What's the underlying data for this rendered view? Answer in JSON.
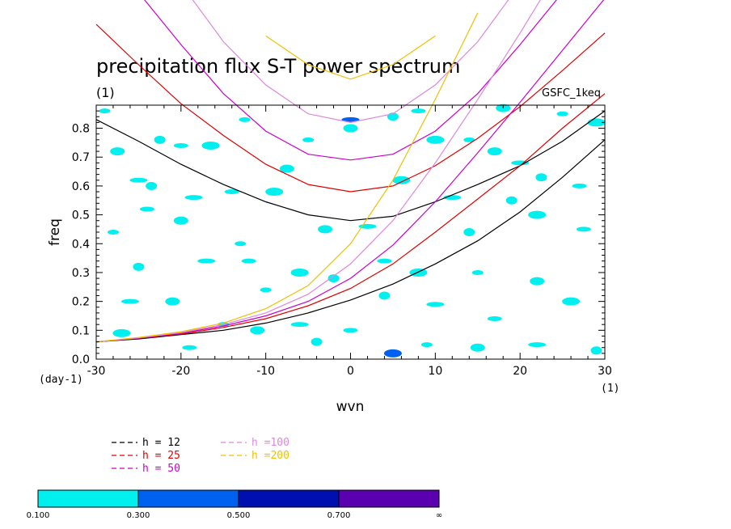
{
  "chart_data": {
    "type": "line",
    "title": "precipitation flux S-T power spectrum",
    "subtitle": "(1)",
    "model_label": "GSFC_1keq",
    "xlabel": "wvn",
    "ylabel": "freq",
    "x_unit_label": "(1)",
    "y_unit_label": "(day-1)",
    "xlim": [
      -30,
      30
    ],
    "ylim": [
      0,
      0.88
    ],
    "x_ticks": [
      -30,
      -20,
      -10,
      0,
      10,
      20,
      30
    ],
    "x_tick_labels": [
      "-30",
      "-20",
      "-10",
      "0",
      "10",
      "20",
      "30"
    ],
    "y_ticks": [
      0,
      0.1,
      0.2,
      0.3,
      0.4,
      0.5,
      0.6,
      0.7,
      0.8
    ],
    "y_tick_labels": [
      "0.0",
      "0.1",
      "0.2",
      "0.3",
      "0.4",
      "0.5",
      "0.6",
      "0.7",
      "0.8"
    ],
    "grid": false,
    "legend_position": "bottom-left",
    "series": [
      {
        "name": "h = 12",
        "legend_label": "h = 12",
        "color": "#000000",
        "rossby_wave": {
          "x": [
            -30,
            -25,
            -20,
            -15,
            -10,
            -5,
            0,
            5,
            10,
            15,
            20,
            25,
            30
          ],
          "y": [
            0.06,
            0.07,
            0.085,
            0.1,
            0.125,
            0.16,
            0.205,
            0.26,
            0.33,
            0.41,
            0.51,
            0.63,
            0.76
          ]
        },
        "gravity_wave": {
          "x": [
            -30,
            -25,
            -20,
            -15,
            -10,
            -5,
            0,
            5,
            10,
            15,
            20,
            25,
            30
          ],
          "y": [
            0.83,
            0.755,
            0.675,
            0.605,
            0.545,
            0.5,
            0.48,
            0.495,
            0.545,
            0.605,
            0.67,
            0.755,
            0.86
          ]
        }
      },
      {
        "name": "h = 25",
        "legend_label": "h = 25",
        "color": "#e00000",
        "rossby_wave": {
          "x": [
            -30,
            -25,
            -20,
            -15,
            -10,
            -5,
            0,
            5,
            10,
            15,
            20,
            25,
            30
          ],
          "y": [
            0.06,
            0.072,
            0.087,
            0.11,
            0.14,
            0.185,
            0.245,
            0.33,
            0.44,
            0.555,
            0.67,
            0.8,
            0.92
          ]
        },
        "gravity_wave": {
          "x": [
            -30,
            -25,
            -20,
            -15,
            -10,
            -5,
            0,
            5,
            10,
            15,
            20,
            25,
            30
          ],
          "y": [
            1.16,
            1.02,
            0.885,
            0.775,
            0.675,
            0.605,
            0.58,
            0.6,
            0.67,
            0.765,
            0.875,
            1.0,
            1.13
          ]
        }
      },
      {
        "name": "h = 50",
        "legend_label": "h = 50",
        "color": "#cc00cc",
        "rossby_wave": {
          "x": [
            -30,
            -25,
            -20,
            -15,
            -10,
            -5,
            0,
            5,
            10,
            15,
            20,
            25,
            30
          ],
          "y": [
            0.06,
            0.073,
            0.09,
            0.115,
            0.15,
            0.2,
            0.28,
            0.395,
            0.545,
            0.715,
            0.89,
            1.07,
            1.25
          ]
        },
        "gravity_wave": {
          "x": [
            -25,
            -20,
            -15,
            -10,
            -5,
            0,
            5,
            10,
            15,
            20,
            25
          ],
          "y": [
            1.27,
            1.09,
            0.92,
            0.79,
            0.71,
            0.69,
            0.71,
            0.79,
            0.92,
            1.09,
            1.27
          ]
        }
      },
      {
        "name": "h =100",
        "legend_label": "h =100",
        "color": "#dd88dd",
        "rossby_wave": {
          "x": [
            -30,
            -25,
            -20,
            -15,
            -10,
            -5,
            0,
            5,
            10,
            15,
            20,
            25
          ],
          "y": [
            0.06,
            0.074,
            0.092,
            0.12,
            0.16,
            0.225,
            0.33,
            0.48,
            0.68,
            0.9,
            1.13,
            1.37
          ]
        },
        "gravity_wave": {
          "x": [
            -20,
            -15,
            -10,
            -5,
            0,
            5,
            10,
            15,
            20
          ],
          "y": [
            1.3,
            1.1,
            0.95,
            0.85,
            0.82,
            0.85,
            0.95,
            1.1,
            1.3
          ]
        }
      },
      {
        "name": "h =200",
        "legend_label": "h =200",
        "color": "#f0c000",
        "rossby_wave": {
          "x": [
            -30,
            -25,
            -20,
            -15,
            -10,
            -5,
            0,
            5,
            10,
            15
          ],
          "y": [
            0.06,
            0.075,
            0.095,
            0.125,
            0.175,
            0.255,
            0.4,
            0.62,
            0.9,
            1.2
          ]
        },
        "gravity_wave": {
          "x": [
            -10,
            -5,
            0,
            5,
            10
          ],
          "y": [
            1.12,
            1.02,
            0.97,
            1.02,
            1.12
          ]
        }
      }
    ],
    "contour_fill": {
      "levels": [
        "0.100",
        "0.300",
        "0.500",
        "0.700"
      ],
      "colors": [
        "#00f0f0",
        "#0060f0",
        "#0010b0",
        "#5a00b0"
      ],
      "cells": [
        {
          "x": -29,
          "y": 0.86,
          "level": 0
        },
        {
          "x": -27.5,
          "y": 0.72,
          "level": 0
        },
        {
          "x": -25,
          "y": 0.62,
          "level": 0
        },
        {
          "x": -22.5,
          "y": 0.76,
          "level": 0
        },
        {
          "x": -20,
          "y": 0.74,
          "level": 0
        },
        {
          "x": -16.5,
          "y": 0.74,
          "level": 0
        },
        {
          "x": -12.5,
          "y": 0.83,
          "level": 0
        },
        {
          "x": -7.5,
          "y": 0.66,
          "level": 0
        },
        {
          "x": -18.5,
          "y": 0.56,
          "level": 0
        },
        {
          "x": -23.5,
          "y": 0.6,
          "level": 0
        },
        {
          "x": -14,
          "y": 0.58,
          "level": 0
        },
        {
          "x": -9,
          "y": 0.58,
          "level": 0
        },
        {
          "x": -5,
          "y": 0.76,
          "level": 0
        },
        {
          "x": 0,
          "y": 0.8,
          "level": 0
        },
        {
          "x": 0,
          "y": 0.83,
          "level": 1
        },
        {
          "x": 5,
          "y": 0.84,
          "level": 0
        },
        {
          "x": 8,
          "y": 0.86,
          "level": 0
        },
        {
          "x": 10,
          "y": 0.76,
          "level": 0
        },
        {
          "x": 14,
          "y": 0.76,
          "level": 0
        },
        {
          "x": 17,
          "y": 0.72,
          "level": 0
        },
        {
          "x": 20,
          "y": 0.68,
          "level": 0
        },
        {
          "x": 22.5,
          "y": 0.63,
          "level": 0
        },
        {
          "x": 27,
          "y": 0.6,
          "level": 0
        },
        {
          "x": 29,
          "y": 0.82,
          "level": 0
        },
        {
          "x": 25,
          "y": 0.85,
          "level": 0
        },
        {
          "x": 18,
          "y": 0.87,
          "level": 0
        },
        {
          "x": 12,
          "y": 0.56,
          "level": 0
        },
        {
          "x": 19,
          "y": 0.55,
          "level": 0
        },
        {
          "x": 27.5,
          "y": 0.45,
          "level": 0
        },
        {
          "x": 22,
          "y": 0.5,
          "level": 0
        },
        {
          "x": -28,
          "y": 0.44,
          "level": 0
        },
        {
          "x": -20,
          "y": 0.48,
          "level": 0
        },
        {
          "x": -17,
          "y": 0.34,
          "level": 0
        },
        {
          "x": -25,
          "y": 0.32,
          "level": 0
        },
        {
          "x": -12,
          "y": 0.34,
          "level": 0
        },
        {
          "x": -6,
          "y": 0.3,
          "level": 0
        },
        {
          "x": -10,
          "y": 0.24,
          "level": 0
        },
        {
          "x": -21,
          "y": 0.2,
          "level": 0
        },
        {
          "x": -26,
          "y": 0.2,
          "level": 0
        },
        {
          "x": -2,
          "y": 0.28,
          "level": 0
        },
        {
          "x": 4,
          "y": 0.34,
          "level": 0
        },
        {
          "x": 8,
          "y": 0.3,
          "level": 0
        },
        {
          "x": 15,
          "y": 0.3,
          "level": 0
        },
        {
          "x": 22,
          "y": 0.27,
          "level": 0
        },
        {
          "x": 10,
          "y": 0.19,
          "level": 0
        },
        {
          "x": 4,
          "y": 0.22,
          "level": 0
        },
        {
          "x": 17,
          "y": 0.14,
          "level": 0
        },
        {
          "x": 26,
          "y": 0.2,
          "level": 0
        },
        {
          "x": -15,
          "y": 0.12,
          "level": 0
        },
        {
          "x": -11,
          "y": 0.1,
          "level": 0
        },
        {
          "x": -6,
          "y": 0.12,
          "level": 0
        },
        {
          "x": -4,
          "y": 0.06,
          "level": 0
        },
        {
          "x": 0,
          "y": 0.1,
          "level": 0
        },
        {
          "x": 5,
          "y": 0.02,
          "level": 1
        },
        {
          "x": 9,
          "y": 0.05,
          "level": 0
        },
        {
          "x": 15,
          "y": 0.04,
          "level": 0
        },
        {
          "x": 22,
          "y": 0.05,
          "level": 0
        },
        {
          "x": 29,
          "y": 0.03,
          "level": 0
        },
        {
          "x": -19,
          "y": 0.04,
          "level": 0
        },
        {
          "x": -27,
          "y": 0.09,
          "level": 0
        },
        {
          "x": -13,
          "y": 0.4,
          "level": 0
        },
        {
          "x": -3,
          "y": 0.45,
          "level": 0
        },
        {
          "x": 2,
          "y": 0.46,
          "level": 0
        },
        {
          "x": 14,
          "y": 0.44,
          "level": 0
        },
        {
          "x": -24,
          "y": 0.52,
          "level": 0
        },
        {
          "x": 6,
          "y": 0.62,
          "level": 0
        }
      ]
    }
  },
  "legend": {
    "items": [
      {
        "label": "h = 12",
        "color": "#000000"
      },
      {
        "label": "h = 25",
        "color": "#e00000"
      },
      {
        "label": "h = 50",
        "color": "#cc00cc"
      },
      {
        "label": "h =100",
        "color": "#dd88dd"
      },
      {
        "label": "h =200",
        "color": "#f0c000"
      }
    ]
  },
  "colorbar": {
    "labels": [
      "0.100",
      "0.300",
      "0.500",
      "0.700",
      "∞"
    ],
    "colors": [
      "#00f0f0",
      "#0060f0",
      "#0010b0",
      "#5a00b0"
    ]
  }
}
